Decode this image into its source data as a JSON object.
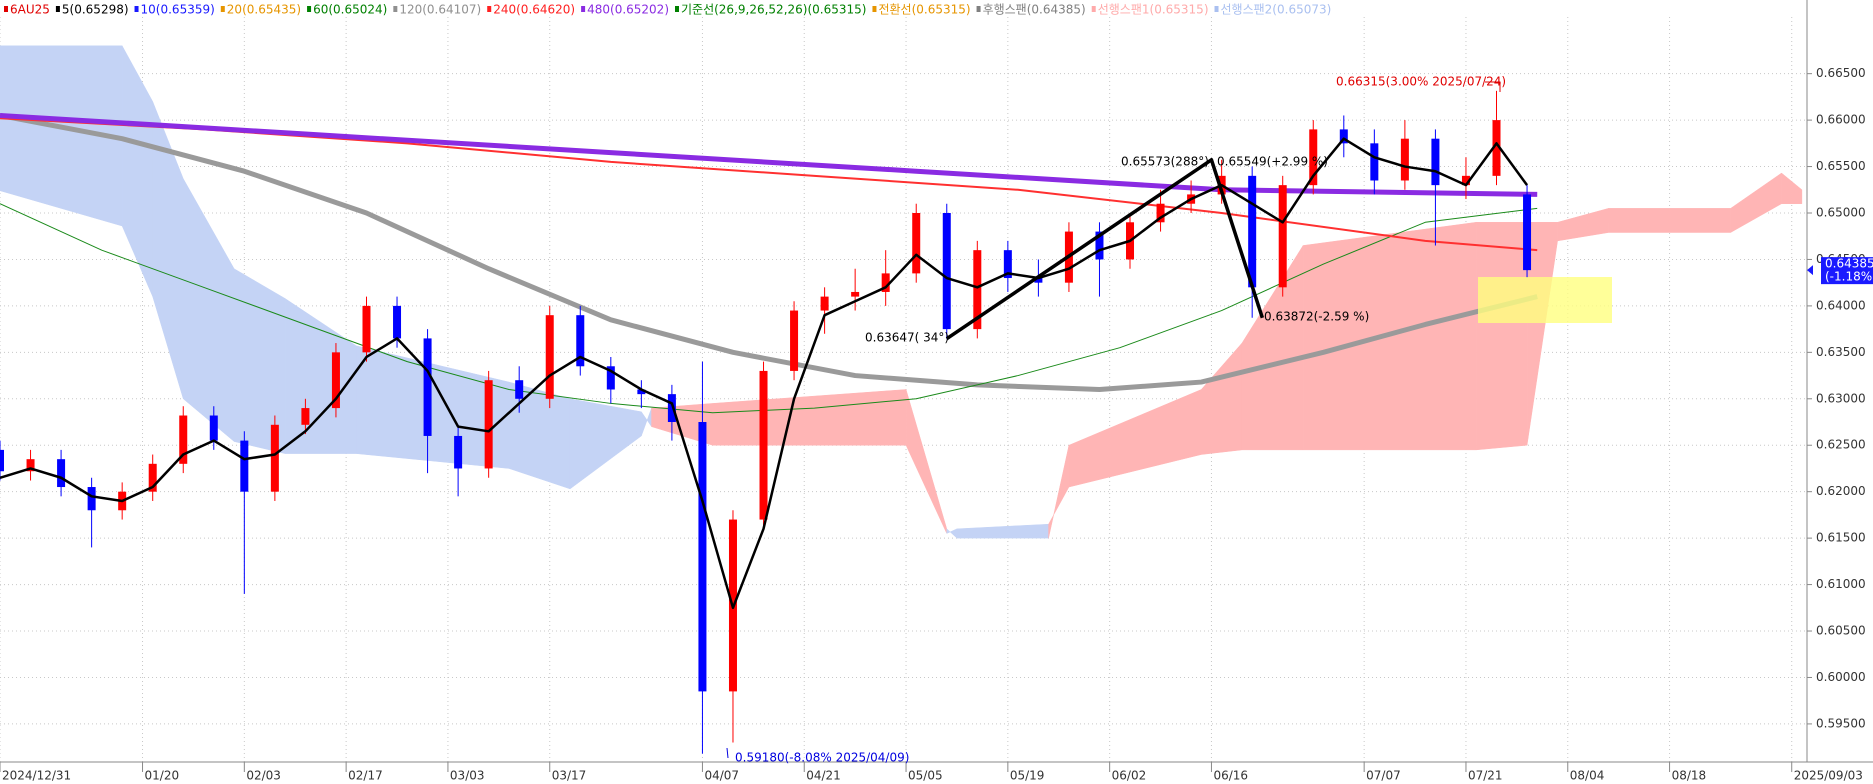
{
  "chart_data": {
    "type": "candlestick",
    "legend": [
      {
        "label": "6AU25",
        "color": "#e00000"
      },
      {
        "label": "5(0.65298)",
        "color": "#000000"
      },
      {
        "label": "10(0.65359)",
        "color": "#1a1aff"
      },
      {
        "label": "20(0.65435)",
        "color": "#e69500"
      },
      {
        "label": "60(0.65024)",
        "color": "#008000"
      },
      {
        "label": "120(0.64107)",
        "color": "#909090"
      },
      {
        "label": "240(0.64620)",
        "color": "#ff2020"
      },
      {
        "label": "480(0.65202)",
        "color": "#8a2be2"
      },
      {
        "label": "기준선(26,9,26,52,26)(0.65315)",
        "color": "#008000"
      },
      {
        "label": "전환선(0.65315)",
        "color": "#e69500"
      },
      {
        "label": "후행스팬(0.64385)",
        "color": "#808080"
      },
      {
        "label": "선행스팬1(0.65315)",
        "color": "#ffaaaa"
      },
      {
        "label": "선행스팬2(0.65073)",
        "color": "#aac0f0"
      }
    ],
    "xlim": [
      0,
      177.5
    ],
    "ylim": [
      0.5909,
      0.6711
    ],
    "xticks": [
      {
        "value": 0,
        "label": "2024/12/31"
      },
      {
        "value": 14,
        "label": "01/20"
      },
      {
        "value": 24,
        "label": "02/03"
      },
      {
        "value": 34,
        "label": "02/17"
      },
      {
        "value": 44,
        "label": "03/03"
      },
      {
        "value": 54,
        "label": "03/17"
      },
      {
        "value": 69,
        "label": "04/07"
      },
      {
        "value": 79,
        "label": "04/21"
      },
      {
        "value": 89,
        "label": "05/05"
      },
      {
        "value": 99,
        "label": "05/19"
      },
      {
        "value": 109,
        "label": "06/02"
      },
      {
        "value": 119,
        "label": "06/16"
      },
      {
        "value": 134,
        "label": "07/07"
      },
      {
        "value": 144,
        "label": "07/21"
      },
      {
        "value": 154,
        "label": "08/04"
      },
      {
        "value": 164,
        "label": "08/18"
      },
      {
        "value": 176,
        "label": "2025/09/03"
      }
    ],
    "yticks": [
      {
        "value": 0.595,
        "label": "0.59500"
      },
      {
        "value": 0.6,
        "label": "0.60000"
      },
      {
        "value": 0.605,
        "label": "0.60500"
      },
      {
        "value": 0.61,
        "label": "0.61000"
      },
      {
        "value": 0.615,
        "label": "0.61500"
      },
      {
        "value": 0.62,
        "label": "0.62000"
      },
      {
        "value": 0.625,
        "label": "0.62500"
      },
      {
        "value": 0.63,
        "label": "0.63000"
      },
      {
        "value": 0.635,
        "label": "0.63500"
      },
      {
        "value": 0.64,
        "label": "0.64000"
      },
      {
        "value": 0.645,
        "label": "0.64500"
      },
      {
        "value": 0.65,
        "label": "0.65000"
      },
      {
        "value": 0.655,
        "label": "0.65500"
      },
      {
        "value": 0.66,
        "label": "0.66000"
      },
      {
        "value": 0.665,
        "label": "0.66500"
      }
    ],
    "grid": true,
    "up_color": "#ff0000",
    "down_color": "#0000ff",
    "candles": {
      "x": [
        0,
        3,
        6,
        9,
        12,
        15,
        18,
        21,
        24,
        27,
        30,
        33,
        36,
        39,
        42,
        45,
        48,
        51,
        54,
        57,
        60,
        63,
        66,
        69,
        72,
        75,
        78,
        81,
        84,
        87,
        90,
        93,
        96,
        99,
        102,
        105,
        108,
        111,
        114,
        117,
        120,
        123,
        126,
        129,
        132,
        135,
        138,
        141,
        144,
        147,
        150
      ],
      "open": [
        0.6245,
        0.6222,
        0.6235,
        0.6205,
        0.618,
        0.62,
        0.623,
        0.6282,
        0.6255,
        0.62,
        0.6272,
        0.629,
        0.635,
        0.64,
        0.6365,
        0.626,
        0.6225,
        0.632,
        0.63,
        0.639,
        0.6335,
        0.631,
        0.6305,
        0.6275,
        0.5985,
        0.617,
        0.633,
        0.6395,
        0.641,
        0.6415,
        0.6435,
        0.65,
        0.6375,
        0.646,
        0.643,
        0.6425,
        0.648,
        0.645,
        0.649,
        0.651,
        0.652,
        0.654,
        0.642,
        0.653,
        0.659,
        0.6575,
        0.6535,
        0.658,
        0.653,
        0.654,
        0.652
      ],
      "high": [
        0.6255,
        0.6245,
        0.6245,
        0.6215,
        0.621,
        0.624,
        0.6292,
        0.6292,
        0.6265,
        0.6282,
        0.63,
        0.636,
        0.641,
        0.641,
        0.6375,
        0.627,
        0.633,
        0.6335,
        0.64,
        0.64,
        0.6345,
        0.632,
        0.6315,
        0.634,
        0.618,
        0.634,
        0.6405,
        0.642,
        0.644,
        0.646,
        0.651,
        0.651,
        0.647,
        0.647,
        0.645,
        0.649,
        0.649,
        0.65,
        0.6525,
        0.6535,
        0.65573,
        0.655,
        0.654,
        0.66,
        0.6605,
        0.659,
        0.66,
        0.659,
        0.656,
        0.66315,
        0.653
      ],
      "low": [
        0.6212,
        0.6212,
        0.6195,
        0.614,
        0.617,
        0.619,
        0.622,
        0.6245,
        0.609,
        0.619,
        0.6262,
        0.628,
        0.634,
        0.6355,
        0.622,
        0.6195,
        0.6215,
        0.6285,
        0.629,
        0.6325,
        0.6295,
        0.629,
        0.6255,
        0.5918,
        0.593,
        0.616,
        0.632,
        0.637,
        0.6395,
        0.64,
        0.6425,
        0.63647,
        0.6365,
        0.6415,
        0.641,
        0.6415,
        0.641,
        0.644,
        0.648,
        0.65,
        0.651,
        0.63872,
        0.641,
        0.652,
        0.656,
        0.652,
        0.6525,
        0.6465,
        0.6515,
        0.653,
        0.643
      ],
      "close": [
        0.6222,
        0.6235,
        0.6205,
        0.618,
        0.62,
        0.623,
        0.6282,
        0.6255,
        0.62,
        0.6272,
        0.629,
        0.635,
        0.64,
        0.6365,
        0.626,
        0.6225,
        0.632,
        0.63,
        0.639,
        0.6335,
        0.631,
        0.6305,
        0.6275,
        0.5985,
        0.617,
        0.633,
        0.6395,
        0.641,
        0.6415,
        0.6435,
        0.65,
        0.6375,
        0.646,
        0.643,
        0.6425,
        0.648,
        0.645,
        0.649,
        0.651,
        0.652,
        0.654,
        0.642,
        0.653,
        0.659,
        0.6575,
        0.6535,
        0.658,
        0.653,
        0.654,
        0.66,
        0.64385
      ]
    },
    "cloud": {
      "x": [
        0,
        12,
        15,
        18,
        23,
        28,
        35,
        50,
        56,
        63,
        64,
        70,
        89,
        93,
        94,
        103,
        105,
        118,
        122,
        128,
        145,
        150,
        153,
        158,
        170,
        175,
        177
      ],
      "span_a": [
        0.6524,
        0.6486,
        0.641,
        0.63,
        0.6254,
        0.6241,
        0.6241,
        0.6225,
        0.6203,
        0.626,
        0.629,
        0.6295,
        0.631,
        0.616,
        0.615,
        0.615,
        0.625,
        0.631,
        0.636,
        0.6465,
        0.649,
        0.649,
        0.649,
        0.6505,
        0.6505,
        0.6543,
        0.6525
      ],
      "span_b": [
        0.668,
        0.668,
        0.662,
        0.6537,
        0.644,
        0.6408,
        0.6357,
        0.6318,
        0.63,
        0.6286,
        0.627,
        0.625,
        0.625,
        0.6155,
        0.616,
        0.6165,
        0.6205,
        0.624,
        0.6245,
        0.6245,
        0.6245,
        0.625,
        0.647,
        0.6479,
        0.6479,
        0.651,
        0.651
      ],
      "up_color": "#ffb5b5",
      "down_color": "#c4d3f5"
    },
    "series": [
      {
        "name": "120",
        "color": "#9a9a9a",
        "width": 5,
        "x": [
          0,
          12,
          24,
          36,
          48,
          60,
          72,
          84,
          96,
          108,
          118,
          130,
          140,
          151
        ],
        "values": [
          0.6605,
          0.658,
          0.6545,
          0.65,
          0.644,
          0.6385,
          0.635,
          0.6325,
          0.6315,
          0.631,
          0.6318,
          0.635,
          0.638,
          0.641
        ]
      },
      {
        "name": "60",
        "color": "#1a8a1a",
        "width": 1,
        "x": [
          0,
          10,
          20,
          30,
          40,
          50,
          60,
          70,
          80,
          90,
          100,
          110,
          120,
          130,
          140,
          151
        ],
        "values": [
          0.651,
          0.646,
          0.642,
          0.638,
          0.634,
          0.631,
          0.6295,
          0.6285,
          0.629,
          0.63,
          0.6325,
          0.6355,
          0.6395,
          0.6445,
          0.649,
          0.6505
        ]
      },
      {
        "name": "240",
        "color": "#ff3030",
        "width": 2,
        "x": [
          0,
          20,
          40,
          60,
          80,
          100,
          120,
          140,
          151
        ],
        "values": [
          0.6602,
          0.659,
          0.6575,
          0.6555,
          0.654,
          0.6525,
          0.65,
          0.647,
          0.646
        ]
      },
      {
        "name": "480",
        "color": "#8a2be2",
        "width": 5,
        "x": [
          0,
          30,
          60,
          90,
          120,
          151
        ],
        "values": [
          0.6605,
          0.6585,
          0.6565,
          0.6545,
          0.6525,
          0.652
        ]
      },
      {
        "name": "5",
        "color": "#000000",
        "width": 2.5,
        "x": [
          0,
          3,
          6,
          9,
          12,
          15,
          18,
          21,
          24,
          27,
          30,
          33,
          36,
          39,
          42,
          45,
          48,
          51,
          54,
          57,
          60,
          63,
          66,
          69,
          72,
          75,
          78,
          81,
          84,
          87,
          90,
          93,
          96,
          99,
          102,
          105,
          108,
          111,
          114,
          117,
          120,
          123,
          126,
          129,
          132,
          135,
          138,
          141,
          144,
          147,
          150
        ],
        "values": [
          0.6215,
          0.6225,
          0.6215,
          0.6195,
          0.619,
          0.6205,
          0.624,
          0.6255,
          0.6235,
          0.624,
          0.6265,
          0.63,
          0.6345,
          0.6365,
          0.633,
          0.627,
          0.6265,
          0.6295,
          0.6325,
          0.6345,
          0.633,
          0.631,
          0.6295,
          0.619,
          0.6075,
          0.616,
          0.63,
          0.639,
          0.6405,
          0.642,
          0.6455,
          0.643,
          0.642,
          0.6435,
          0.643,
          0.644,
          0.646,
          0.647,
          0.6495,
          0.6515,
          0.653,
          0.651,
          0.649,
          0.654,
          0.658,
          0.656,
          0.655,
          0.6545,
          0.653,
          0.6575,
          0.653
        ]
      }
    ],
    "zigzag": {
      "x": [
        93,
        119,
        124
      ],
      "values": [
        0.63647,
        0.65573,
        0.63872
      ],
      "color": "#000000"
    },
    "annotations": [
      {
        "text": "0.66315(3.00% 2025/07/24)",
        "color": "#e00000"
      },
      {
        "text": "0.59180(-8.08% 2025/04/09)",
        "color": "#0000e0"
      },
      {
        "text": "0.65573(288°)",
        "color": "#000000"
      },
      {
        "text": "0.65549(+2.99 %)",
        "color": "#000000"
      },
      {
        "text": "0.63647( 34°)",
        "color": "#000000"
      },
      {
        "text": "0.63872(-2.59 %)",
        "color": "#000000"
      }
    ],
    "price_tag": {
      "value": 0.64385,
      "change": "(-1.18%)",
      "color": "#1a1aff"
    }
  }
}
